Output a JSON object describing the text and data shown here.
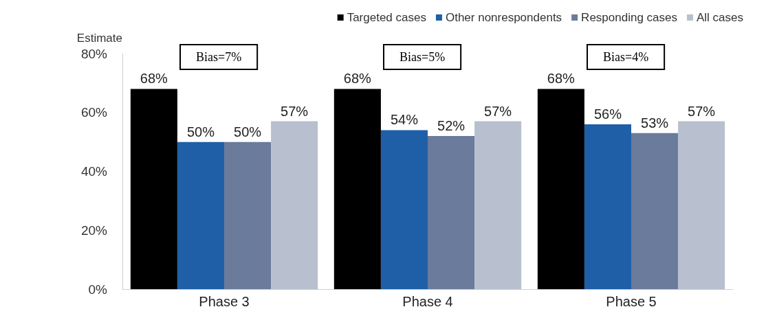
{
  "chart_data": {
    "type": "bar",
    "ylabel": "Estimate",
    "categories": [
      "Phase 3",
      "Phase 4",
      "Phase 5"
    ],
    "series": [
      {
        "name": "Targeted cases",
        "color": "#000000",
        "values": [
          68,
          68,
          68
        ],
        "value_labels": [
          "68%",
          "68%",
          "68%"
        ]
      },
      {
        "name": "Other nonrespondents",
        "color": "#1f5fa8",
        "values": [
          50,
          54,
          56
        ],
        "value_labels": [
          "50%",
          "54%",
          "56%"
        ]
      },
      {
        "name": "Responding cases",
        "color": "#6b7b9c",
        "values": [
          50,
          52,
          53
        ],
        "value_labels": [
          "50%",
          "52%",
          "53%"
        ]
      },
      {
        "name": "All cases",
        "color": "#b8bfcf",
        "values": [
          57,
          57,
          57
        ],
        "value_labels": [
          "57%",
          "57%",
          "57%"
        ]
      }
    ],
    "ylim": [
      0,
      80
    ],
    "yticks": [
      {
        "value": 0,
        "label": "0%"
      },
      {
        "value": 20,
        "label": "20%"
      },
      {
        "value": 40,
        "label": "40%"
      },
      {
        "value": 60,
        "label": "60%"
      },
      {
        "value": 80,
        "label": "80%"
      }
    ],
    "grid": false,
    "legend": "top right",
    "annotations": [
      "Bias=7%",
      "Bias=5%",
      "Bias=4%"
    ]
  }
}
